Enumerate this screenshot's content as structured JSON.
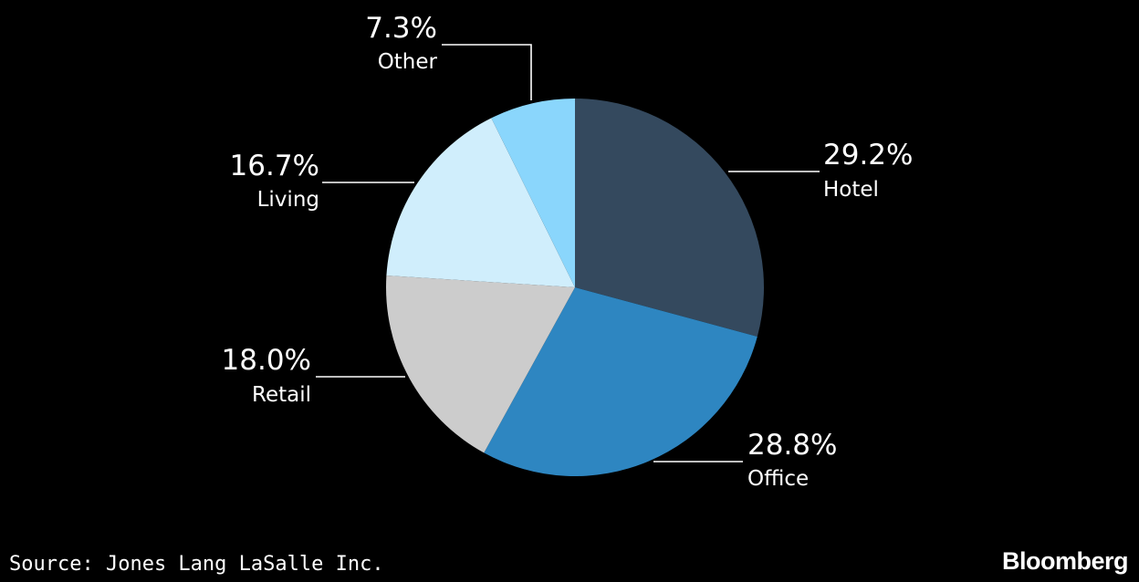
{
  "chart_data": {
    "type": "pie",
    "start_angle_deg": 0,
    "direction": "clockwise",
    "slices": [
      {
        "label": "Hotel",
        "value": 29.2,
        "value_label": "29.2%",
        "color": "#34495e"
      },
      {
        "label": "Office",
        "value": 28.8,
        "value_label": "28.8%",
        "color": "#2e86c1"
      },
      {
        "label": "Retail",
        "value": 18.0,
        "value_label": "18.0%",
        "color": "#cccccc"
      },
      {
        "label": "Living",
        "value": 16.7,
        "value_label": "16.7%",
        "color": "#d0eefc"
      },
      {
        "label": "Other",
        "value": 7.3,
        "value_label": "7.3%",
        "color": "#8ad6fc"
      }
    ],
    "legend": "none"
  },
  "footer": {
    "source": "Source: Jones Lang LaSalle Inc.",
    "brand": "Bloomberg"
  }
}
